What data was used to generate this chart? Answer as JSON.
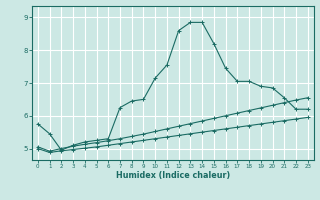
{
  "xlabel": "Humidex (Indice chaleur)",
  "bg_color": "#cce8e4",
  "grid_color": "#ffffff",
  "line_color": "#1a6b63",
  "xlim": [
    -0.5,
    23.5
  ],
  "ylim": [
    4.65,
    9.35
  ],
  "yticks": [
    5,
    6,
    7,
    8,
    9
  ],
  "xticks": [
    0,
    1,
    2,
    3,
    4,
    5,
    6,
    7,
    8,
    9,
    10,
    11,
    12,
    13,
    14,
    15,
    16,
    17,
    18,
    19,
    20,
    21,
    22,
    23
  ],
  "line1_x": [
    0,
    1,
    2,
    3,
    4,
    5,
    6,
    7,
    8,
    9,
    10,
    11,
    12,
    13,
    14,
    15,
    16,
    17,
    18,
    19,
    20,
    21,
    22,
    23
  ],
  "line1_y": [
    5.75,
    5.45,
    4.95,
    5.1,
    5.2,
    5.25,
    5.3,
    6.25,
    6.45,
    6.5,
    7.15,
    7.55,
    8.6,
    8.85,
    8.85,
    8.2,
    7.45,
    7.05,
    7.05,
    6.9,
    6.85,
    6.55,
    6.2,
    6.2
  ],
  "line2_x": [
    0,
    1,
    2,
    3,
    4,
    5,
    6,
    7,
    8,
    9,
    10,
    11,
    12,
    13,
    14,
    15,
    16,
    17,
    18,
    19,
    20,
    21,
    22,
    23
  ],
  "line2_y": [
    5.05,
    4.92,
    5.0,
    5.07,
    5.13,
    5.18,
    5.24,
    5.3,
    5.37,
    5.44,
    5.52,
    5.6,
    5.68,
    5.76,
    5.84,
    5.92,
    6.0,
    6.08,
    6.16,
    6.24,
    6.32,
    6.4,
    6.48,
    6.55
  ],
  "line3_x": [
    0,
    1,
    2,
    3,
    4,
    5,
    6,
    7,
    8,
    9,
    10,
    11,
    12,
    13,
    14,
    15,
    16,
    17,
    18,
    19,
    20,
    21,
    22,
    23
  ],
  "line3_y": [
    5.0,
    4.88,
    4.93,
    4.97,
    5.01,
    5.05,
    5.1,
    5.15,
    5.2,
    5.25,
    5.3,
    5.35,
    5.4,
    5.45,
    5.5,
    5.55,
    5.6,
    5.65,
    5.7,
    5.75,
    5.8,
    5.85,
    5.9,
    5.95
  ]
}
